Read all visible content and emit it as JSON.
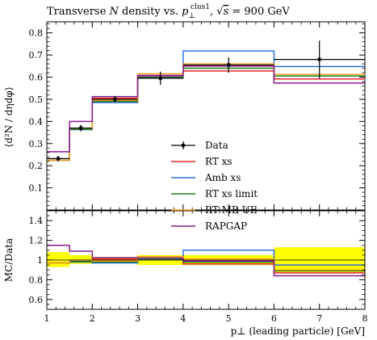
{
  "title": {
    "prefix": "Transverse ",
    "var": "N",
    "middle": " density vs. ",
    "p": "p",
    "sub": "⊥",
    "sup": "clus1",
    "comma": ", ",
    "sqrt": "√",
    "s": "s",
    "tail": " = 900 GeV"
  },
  "axes": {
    "ylabel_main": "⟨d²N / dηdφ⟩",
    "ylabel_ratio": "MC/Data",
    "xlabel": "p⊥ (leading particle) [GeV]"
  },
  "colors": {
    "Data": "#000000",
    "RT xs": "#e8232a",
    "Amb xs": "#2d6fe0",
    "RT xs limit": "#1f7a1f",
    "RT MB UE": "#f2a21d",
    "RAPGAP": "#8b1a8b",
    "band": "#ffff00"
  },
  "chart_data": [
    {
      "type": "line",
      "title": "Transverse N density vs. p⊥clus1, √s = 900 GeV",
      "xlabel": "p⊥ (leading particle) [GeV]",
      "ylabel": "⟨d²N / dηdφ⟩",
      "xlim": [
        1,
        8
      ],
      "ylim": [
        0,
        0.85
      ],
      "x_ticks": [
        1,
        2,
        3,
        4,
        5,
        6,
        7,
        8
      ],
      "y_ticks": [
        0.1,
        0.2,
        0.3,
        0.4,
        0.5,
        0.6,
        0.7,
        0.8
      ],
      "grid": false,
      "legend": "center",
      "bin_edges": [
        1,
        1.5,
        2,
        3,
        4,
        6,
        8
      ],
      "data": {
        "name": "Data",
        "x": [
          1.25,
          1.75,
          2.5,
          3.5,
          5.0,
          7.0
        ],
        "y": [
          0.232,
          0.37,
          0.5,
          0.595,
          0.655,
          0.68
        ],
        "yerr": [
          0.012,
          0.015,
          0.015,
          0.03,
          0.035,
          0.085
        ],
        "xerr": [
          0.25,
          0.25,
          0.5,
          0.5,
          1.0,
          1.0
        ]
      },
      "series": [
        {
          "name": "RT xs",
          "values": [
            0.225,
            0.365,
            0.505,
            0.605,
            0.628,
            0.592
          ]
        },
        {
          "name": "Amb xs",
          "values": [
            0.225,
            0.363,
            0.485,
            0.6,
            0.718,
            0.648
          ]
        },
        {
          "name": "RT xs limit",
          "values": [
            0.225,
            0.365,
            0.49,
            0.598,
            0.64,
            0.605
          ]
        },
        {
          "name": "RT MB UE",
          "values": [
            0.225,
            0.37,
            0.495,
            0.615,
            0.66,
            0.612
          ]
        },
        {
          "name": "RAPGAP",
          "values": [
            0.263,
            0.4,
            0.512,
            0.608,
            0.65,
            0.573
          ]
        }
      ]
    },
    {
      "type": "line",
      "ylabel": "MC/Data",
      "xlabel": "p⊥ (leading particle) [GeV]",
      "xlim": [
        1,
        8
      ],
      "ylim": [
        0.5,
        1.5
      ],
      "x_ticks": [
        1,
        2,
        3,
        4,
        5,
        6,
        7,
        8
      ],
      "y_ticks": [
        0.6,
        0.8,
        1.0,
        1.2,
        1.4
      ],
      "y_tick_labels": [
        "0.6",
        "0.8",
        "1",
        "1.2",
        "1.4"
      ],
      "bin_edges": [
        1,
        1.5,
        2,
        3,
        4,
        6,
        8
      ],
      "band": {
        "name": "Data uncertainty",
        "lo": [
          0.93,
          0.96,
          0.97,
          0.95,
          0.95,
          0.875
        ],
        "hi": [
          1.08,
          1.05,
          1.03,
          1.05,
          1.05,
          1.13
        ]
      },
      "series": [
        {
          "name": "RT xs",
          "values": [
            0.97,
            0.985,
            1.01,
            1.015,
            0.96,
            0.87
          ]
        },
        {
          "name": "Amb xs",
          "values": [
            0.97,
            0.98,
            0.97,
            1.01,
            1.1,
            0.95
          ]
        },
        {
          "name": "RT xs limit",
          "values": [
            0.97,
            0.985,
            0.98,
            1.005,
            0.98,
            0.89
          ]
        },
        {
          "name": "RT MB UE",
          "values": [
            0.97,
            1.0,
            0.99,
            1.035,
            1.01,
            0.9
          ]
        },
        {
          "name": "RAPGAP",
          "values": [
            1.15,
            1.09,
            1.025,
            1.02,
            0.99,
            0.84
          ]
        }
      ]
    }
  ]
}
